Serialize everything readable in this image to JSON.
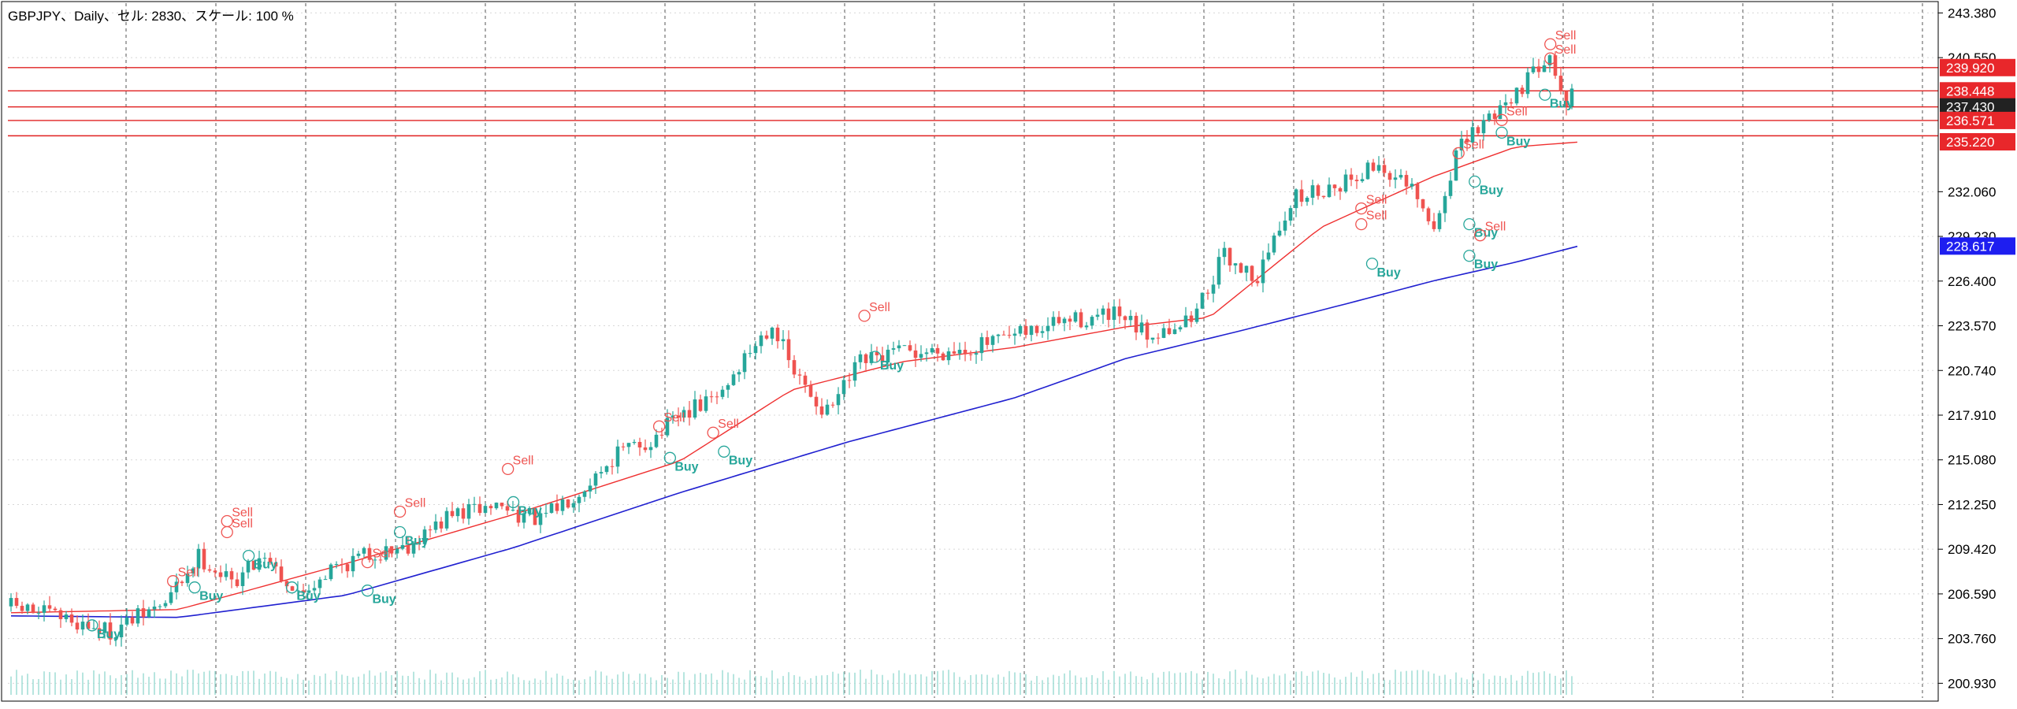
{
  "header": {
    "text": "GBPJPY、Daily、セル: 2830、スケール: 100 %"
  },
  "chart_data": {
    "type": "candlestick",
    "symbol": "GBPJPY",
    "timeframe": "Daily",
    "ylim": [
      200.0,
      244.0
    ],
    "y_ticks": [
      "243.380",
      "240.550",
      "232.060",
      "229.230",
      "226.400",
      "223.570",
      "220.740",
      "217.910",
      "215.080",
      "212.250",
      "209.420",
      "206.590",
      "203.760",
      "200.930"
    ],
    "bar_count": 240,
    "grid": true,
    "colors": {
      "up": "#26a69a",
      "down": "#ef5350",
      "ma_fast": "#ef3030",
      "ma_slow": "#2020d0",
      "level": "#e02020",
      "volume": "#9fdcd4",
      "grid_v": "#555555",
      "grid_h": "#d8d8d8"
    },
    "levels": [
      {
        "value": 239.92,
        "label": "239.920",
        "color": "#e8272b"
      },
      {
        "value": 238.448,
        "label": "238.448",
        "color": "#e8272b"
      },
      {
        "value": 237.43,
        "label": "237.430",
        "color": "#222222"
      },
      {
        "value": 236.571,
        "label": "236.571",
        "color": "#e8272b"
      },
      {
        "value": 235.22,
        "label": "235.220",
        "color": "#e8272b"
      },
      {
        "value": 228.617,
        "label": "228.617",
        "color": "#1e1ef0"
      }
    ],
    "level_lines": [
      239.92,
      238.448,
      237.43,
      236.571
    ],
    "anchors": [
      [
        0,
        205.8
      ],
      [
        10,
        205.0
      ],
      [
        18,
        204.2
      ],
      [
        28,
        206.0
      ],
      [
        34,
        209.0
      ],
      [
        40,
        207.3
      ],
      [
        46,
        209.2
      ],
      [
        52,
        206.5
      ],
      [
        58,
        208.2
      ],
      [
        64,
        209.0
      ],
      [
        72,
        209.7
      ],
      [
        80,
        211.6
      ],
      [
        88,
        212.2
      ],
      [
        96,
        211.2
      ],
      [
        104,
        213.5
      ],
      [
        110,
        215.5
      ],
      [
        116,
        216.3
      ],
      [
        122,
        218.0
      ],
      [
        128,
        219.0
      ],
      [
        134,
        222.0
      ],
      [
        138,
        223.8
      ],
      [
        142,
        220.5
      ],
      [
        148,
        218.0
      ],
      [
        154,
        221.2
      ],
      [
        160,
        221.8
      ],
      [
        170,
        222.0
      ],
      [
        180,
        222.6
      ],
      [
        190,
        223.8
      ],
      [
        200,
        224.2
      ],
      [
        206,
        223.0
      ],
      [
        214,
        224.0
      ],
      [
        220,
        228.0
      ],
      [
        226,
        226.6
      ],
      [
        232,
        231.5
      ],
      [
        240,
        232.5
      ],
      [
        248,
        233.8
      ],
      [
        254,
        232.0
      ],
      [
        258,
        229.5
      ],
      [
        262,
        234.5
      ],
      [
        268,
        236.8
      ],
      [
        276,
        239.5
      ],
      [
        279,
        241.2
      ],
      [
        281,
        238.0
      ]
    ],
    "ma_fast": [
      [
        0,
        205.4
      ],
      [
        30,
        205.6
      ],
      [
        60,
        208.5
      ],
      [
        90,
        211.6
      ],
      [
        120,
        215.0
      ],
      [
        140,
        219.5
      ],
      [
        160,
        221.3
      ],
      [
        180,
        222.2
      ],
      [
        200,
        223.5
      ],
      [
        215,
        224.1
      ],
      [
        235,
        229.8
      ],
      [
        255,
        233.0
      ],
      [
        270,
        234.9
      ],
      [
        281,
        235.2
      ]
    ],
    "ma_slow": [
      [
        0,
        205.2
      ],
      [
        30,
        205.1
      ],
      [
        60,
        206.5
      ],
      [
        90,
        209.5
      ],
      [
        120,
        213.0
      ],
      [
        150,
        216.2
      ],
      [
        180,
        219.0
      ],
      [
        200,
        221.5
      ],
      [
        220,
        223.2
      ],
      [
        240,
        225.0
      ],
      [
        255,
        226.4
      ],
      [
        270,
        227.6
      ],
      [
        281,
        228.6
      ]
    ],
    "signals": [
      {
        "x": 15,
        "price": 204.6,
        "label": "Buy",
        "kind": "buy"
      },
      {
        "x": 30,
        "price": 207.4,
        "label": "Sell",
        "kind": "sell"
      },
      {
        "x": 34,
        "price": 207.0,
        "label": "Buy",
        "kind": "buy"
      },
      {
        "x": 40,
        "price": 211.2,
        "label": "Sell",
        "kind": "sell"
      },
      {
        "x": 40,
        "price": 210.5,
        "label": "Sell",
        "kind": "sell"
      },
      {
        "x": 44,
        "price": 209.0,
        "label": "Buy",
        "kind": "buy"
      },
      {
        "x": 52,
        "price": 207.0,
        "label": "Buy",
        "kind": "buy"
      },
      {
        "x": 66,
        "price": 208.6,
        "label": "Sell",
        "kind": "sell"
      },
      {
        "x": 66,
        "price": 206.8,
        "label": "Buy",
        "kind": "buy"
      },
      {
        "x": 72,
        "price": 211.8,
        "label": "Sell",
        "kind": "sell"
      },
      {
        "x": 72,
        "price": 210.5,
        "label": "Buy",
        "kind": "buy"
      },
      {
        "x": 92,
        "price": 214.5,
        "label": "Sell",
        "kind": "sell"
      },
      {
        "x": 93,
        "price": 212.4,
        "label": "Buy",
        "kind": "buy"
      },
      {
        "x": 120,
        "price": 217.2,
        "label": "Sell",
        "kind": "sell"
      },
      {
        "x": 122,
        "price": 215.2,
        "label": "Buy",
        "kind": "buy"
      },
      {
        "x": 130,
        "price": 216.8,
        "label": "Sell",
        "kind": "sell"
      },
      {
        "x": 132,
        "price": 215.6,
        "label": "Buy",
        "kind": "buy"
      },
      {
        "x": 158,
        "price": 224.2,
        "label": "Sell",
        "kind": "sell"
      },
      {
        "x": 160,
        "price": 221.6,
        "label": "Buy",
        "kind": "buy"
      },
      {
        "x": 250,
        "price": 231.0,
        "label": "Sell",
        "kind": "sell"
      },
      {
        "x": 250,
        "price": 230.0,
        "label": "Sell",
        "kind": "sell"
      },
      {
        "x": 252,
        "price": 227.5,
        "label": "Buy",
        "kind": "buy"
      },
      {
        "x": 268,
        "price": 234.5,
        "label": "Sell",
        "kind": "sell"
      },
      {
        "x": 271,
        "price": 232.7,
        "label": "Buy",
        "kind": "buy"
      },
      {
        "x": 270,
        "price": 230.0,
        "label": "Buy",
        "kind": "buy"
      },
      {
        "x": 272,
        "price": 229.3,
        "label": "Sell",
        "kind": "sell"
      },
      {
        "x": 270,
        "price": 228.0,
        "label": "Buy",
        "kind": "buy"
      },
      {
        "x": 276,
        "price": 236.6,
        "label": "Sell",
        "kind": "sell"
      },
      {
        "x": 276,
        "price": 235.8,
        "label": "Buy",
        "kind": "buy"
      },
      {
        "x": 285,
        "price": 241.4,
        "label": "Sell",
        "kind": "sell"
      },
      {
        "x": 285,
        "price": 240.5,
        "label": "Sell",
        "kind": "sell"
      },
      {
        "x": 284,
        "price": 238.2,
        "label": "Buy",
        "kind": "buy"
      }
    ]
  }
}
